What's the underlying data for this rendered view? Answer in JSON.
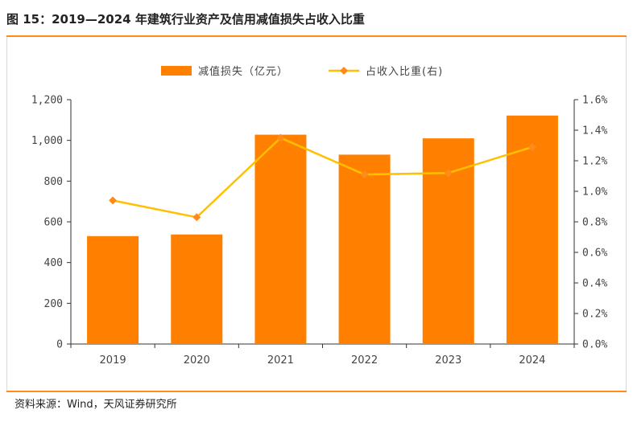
{
  "header": {
    "title": "图 15：2019—2024 年建筑行业资产及信用减值损失占收入比重"
  },
  "footer": {
    "source": "资料来源：Wind，天风证券研究所"
  },
  "colors": {
    "accent": "#ff8c1a",
    "bar": "#ff8000",
    "line": "#ffc000",
    "marker": "#ff8c1a"
  },
  "chart_data": {
    "type": "bar",
    "categories": [
      "2019",
      "2020",
      "2021",
      "2022",
      "2023",
      "2024"
    ],
    "series": [
      {
        "name": "减值损失（亿元）",
        "type": "bar",
        "axis": "left",
        "values": [
          530,
          538,
          1028,
          930,
          1010,
          1122
        ]
      },
      {
        "name": "占收入比重(右)",
        "type": "line",
        "axis": "right",
        "values": [
          0.94,
          0.83,
          1.35,
          1.11,
          1.12,
          1.29
        ]
      }
    ],
    "y_left": {
      "ylim": [
        0,
        1200
      ],
      "ticks": [
        0,
        200,
        400,
        600,
        800,
        1000,
        1200
      ],
      "tick_labels": [
        "0",
        "200",
        "400",
        "600",
        "800",
        "1,000",
        "1,200"
      ]
    },
    "y_right": {
      "ylim": [
        0,
        1.6
      ],
      "ticks": [
        0,
        0.2,
        0.4,
        0.6,
        0.8,
        1.0,
        1.2,
        1.4,
        1.6
      ],
      "tick_labels": [
        "0.0%",
        "0.2%",
        "0.4%",
        "0.6%",
        "0.8%",
        "1.0%",
        "1.2%",
        "1.4%",
        "1.6%"
      ]
    },
    "legend_position": "top-center",
    "grid": false
  }
}
